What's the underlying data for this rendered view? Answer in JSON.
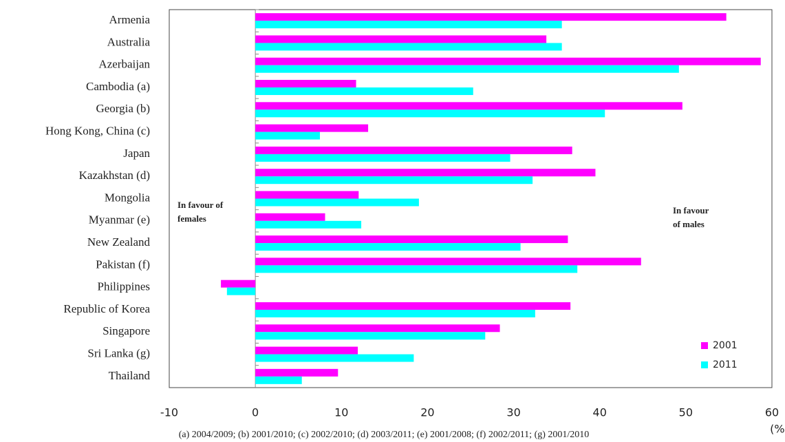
{
  "chart_data": {
    "type": "hbar",
    "categories": [
      "Armenia",
      "Australia",
      "Azerbaijan",
      "Cambodia (a)",
      "Georgia (b)",
      "Hong Kong, China (c)",
      "Japan",
      "Kazakhstan (d)",
      "Mongolia",
      "Myanmar (e)",
      "New Zealand",
      "Pakistan (f)",
      "Philippines",
      "Republic of Korea",
      "Singapore",
      "Sri Lanka (g)",
      "Thailand"
    ],
    "series": [
      {
        "name": "2001",
        "color": "#ff00ff",
        "values": [
          54.7,
          33.8,
          58.7,
          11.7,
          49.6,
          13.1,
          36.8,
          39.5,
          12.0,
          8.1,
          36.3,
          44.8,
          -4.0,
          36.6,
          28.4,
          11.9,
          9.6
        ]
      },
      {
        "name": "2011",
        "color": "#00ffff",
        "values": [
          35.6,
          35.6,
          49.2,
          25.3,
          40.6,
          7.5,
          29.6,
          32.2,
          19.0,
          12.3,
          30.8,
          37.4,
          -3.3,
          32.5,
          26.7,
          18.4,
          5.4
        ]
      }
    ],
    "xlim": [
      -10,
      60
    ],
    "xticks": [
      -10,
      0,
      10,
      20,
      30,
      40,
      50,
      60
    ],
    "x_label": "(%)",
    "annotations": [
      [
        "In favour of",
        "females"
      ],
      [
        "In favour",
        "of males"
      ]
    ],
    "footnote": "(a) 2004/2009; (b) 2001/2010; (c) 2002/2010; (d) 2003/2011; (e) 2001/2008; (f) 2002/2011; (g) 2001/2010",
    "legend": "lower right"
  }
}
